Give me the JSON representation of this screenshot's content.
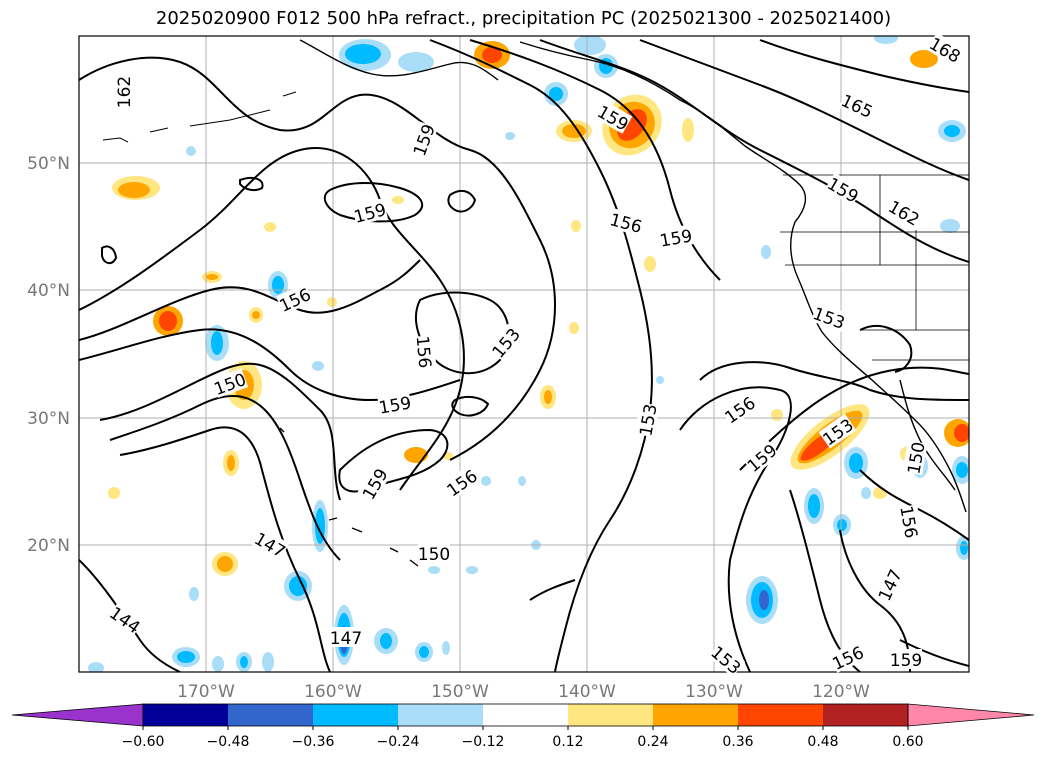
{
  "title": "2025020900 F012 500 hPa refract., precipitation PC (2025021300 - 2025021400)",
  "map": {
    "lat_labels": [
      "50°N",
      "40°N",
      "30°N",
      "20°N"
    ],
    "lon_labels": [
      "170°W",
      "160°W",
      "150°W",
      "140°W",
      "130°W",
      "120°W"
    ],
    "contour_labels": [
      "162",
      "159",
      "159",
      "159",
      "165",
      "168",
      "159",
      "162",
      "156",
      "159",
      "156",
      "153",
      "156",
      "153",
      "150",
      "159",
      "153",
      "156",
      "159",
      "153",
      "159",
      "156",
      "150",
      "147",
      "147",
      "150",
      "144",
      "156",
      "147",
      "156",
      "159",
      "153"
    ]
  },
  "colorbar": {
    "ticks": [
      "−0.60",
      "−0.48",
      "−0.36",
      "−0.24",
      "−0.12",
      "0.12",
      "0.24",
      "0.36",
      "0.48",
      "0.60"
    ],
    "colors": [
      "#9933cc",
      "#000099",
      "#3366cc",
      "#00bbff",
      "#aaddf8",
      "#ffffff",
      "#ffe680",
      "#ffa500",
      "#ff4500",
      "#b22222",
      "#ff88aa"
    ]
  }
}
